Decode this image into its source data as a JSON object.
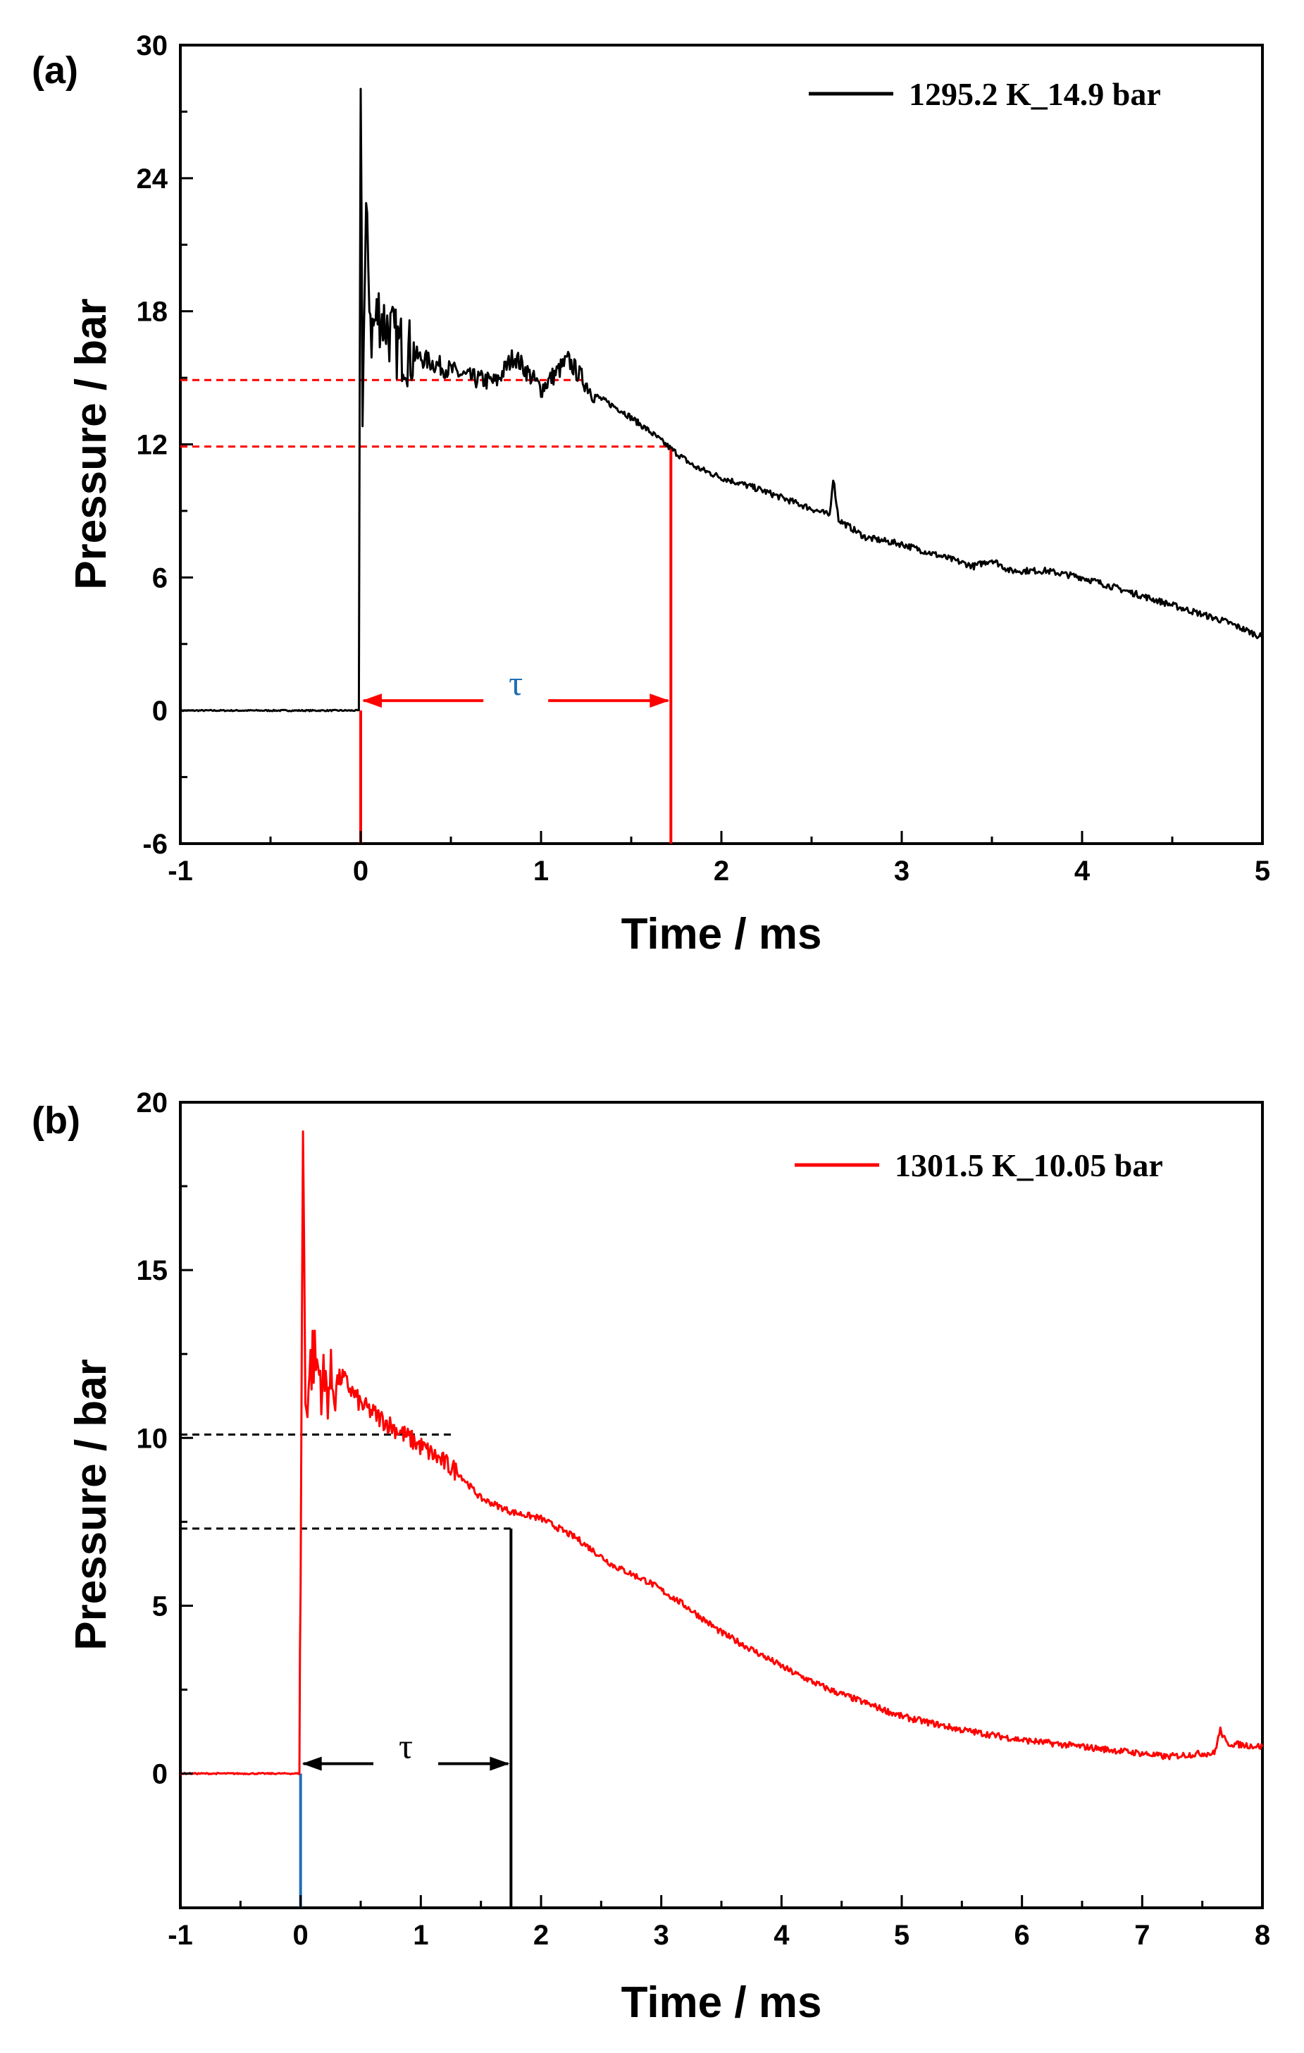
{
  "chart_data": [
    {
      "type": "line",
      "panel_label": "(a)",
      "xlabel": "Time / ms",
      "ylabel": "Pressure / bar",
      "xlim": [
        -1,
        5
      ],
      "ylim": [
        -6,
        30
      ],
      "xticks": [
        -1,
        0,
        1,
        2,
        3,
        4,
        5
      ],
      "yticks": [
        -6,
        0,
        6,
        12,
        18,
        24,
        30
      ],
      "x_tick_labels": [
        "-1",
        "0",
        "1",
        "2",
        "3",
        "4",
        "5"
      ],
      "y_tick_labels": [
        "-6",
        "0",
        "6",
        "12",
        "18",
        "24",
        "30"
      ],
      "series": [
        {
          "name": "1295.2 K_14.9 bar",
          "color": "#000000",
          "x": [
            -1.0,
            -0.5,
            -0.01,
            0.0,
            0.01,
            0.03,
            0.06,
            0.1,
            0.2,
            0.3,
            0.45,
            0.6,
            0.75,
            0.85,
            1.0,
            1.15,
            1.3,
            1.45,
            1.6,
            1.72,
            1.85,
            2.0,
            2.2,
            2.4,
            2.6,
            2.62,
            2.65,
            2.8,
            3.0,
            3.2,
            3.4,
            3.5,
            3.6,
            3.8,
            4.0,
            4.2,
            4.4,
            4.6,
            4.8,
            5.0
          ],
          "y": [
            0.0,
            0.0,
            0.0,
            29.0,
            14.0,
            22.0,
            17.0,
            18.0,
            16.5,
            16.0,
            15.5,
            15.0,
            14.8,
            16.0,
            14.5,
            15.8,
            14.2,
            13.5,
            12.6,
            11.8,
            11.0,
            10.5,
            10.0,
            9.4,
            8.8,
            10.5,
            8.6,
            7.8,
            7.5,
            7.0,
            6.5,
            6.8,
            6.3,
            6.3,
            6.0,
            5.5,
            5.0,
            4.5,
            4.0,
            3.3
          ]
        }
      ],
      "annotations": {
        "tau_label": "τ",
        "ignition_time_ms": 0.0,
        "tau_end_ms": 1.72,
        "dashed_levels_bar": [
          14.9,
          11.9
        ],
        "guide_color": "#ff0000",
        "tau_label_color": "#1f6fb5"
      }
    },
    {
      "type": "line",
      "panel_label": "(b)",
      "xlabel": "Time / ms",
      "ylabel": "Pressure / bar",
      "xlim": [
        -1,
        8
      ],
      "ylim": [
        -4,
        20
      ],
      "xticks": [
        -1,
        0,
        1,
        2,
        3,
        4,
        5,
        6,
        7,
        8
      ],
      "yticks": [
        0,
        5,
        10,
        15,
        20
      ],
      "x_tick_labels": [
        "-1",
        "0",
        "1",
        "2",
        "3",
        "4",
        "5",
        "6",
        "7",
        "8"
      ],
      "y_tick_labels": [
        "0",
        "5",
        "10",
        "15",
        "20"
      ],
      "series": [
        {
          "name": "1301.5 K_10.05 bar",
          "color": "#ff0000",
          "x": [
            -1.0,
            -0.5,
            -0.01,
            0.0,
            0.02,
            0.04,
            0.1,
            0.2,
            0.35,
            0.5,
            0.7,
            0.9,
            1.1,
            1.3,
            1.5,
            1.75,
            2.0,
            2.3,
            2.6,
            2.9,
            3.2,
            3.5,
            3.8,
            4.1,
            4.4,
            4.7,
            5.0,
            5.5,
            6.0,
            6.5,
            7.0,
            7.2,
            7.5,
            7.6,
            7.65,
            7.7,
            8.0
          ],
          "y": [
            0.0,
            0.0,
            0.0,
            6.0,
            19.3,
            11.0,
            12.5,
            11.5,
            11.8,
            11.0,
            10.5,
            10.0,
            9.5,
            9.0,
            8.2,
            7.8,
            7.6,
            7.0,
            6.2,
            5.7,
            5.0,
            4.2,
            3.6,
            3.0,
            2.5,
            2.1,
            1.7,
            1.3,
            1.0,
            0.8,
            0.6,
            0.5,
            0.6,
            0.6,
            1.3,
            0.9,
            0.8
          ]
        }
      ],
      "annotations": {
        "tau_label": "τ",
        "ignition_time_ms": 0.0,
        "tau_end_ms": 1.75,
        "dashed_levels_bar": [
          10.1,
          7.3
        ],
        "guide_color": "#000000",
        "ignition_line_color": "#1f6fb5",
        "tau_label_color": "#000000"
      }
    }
  ]
}
